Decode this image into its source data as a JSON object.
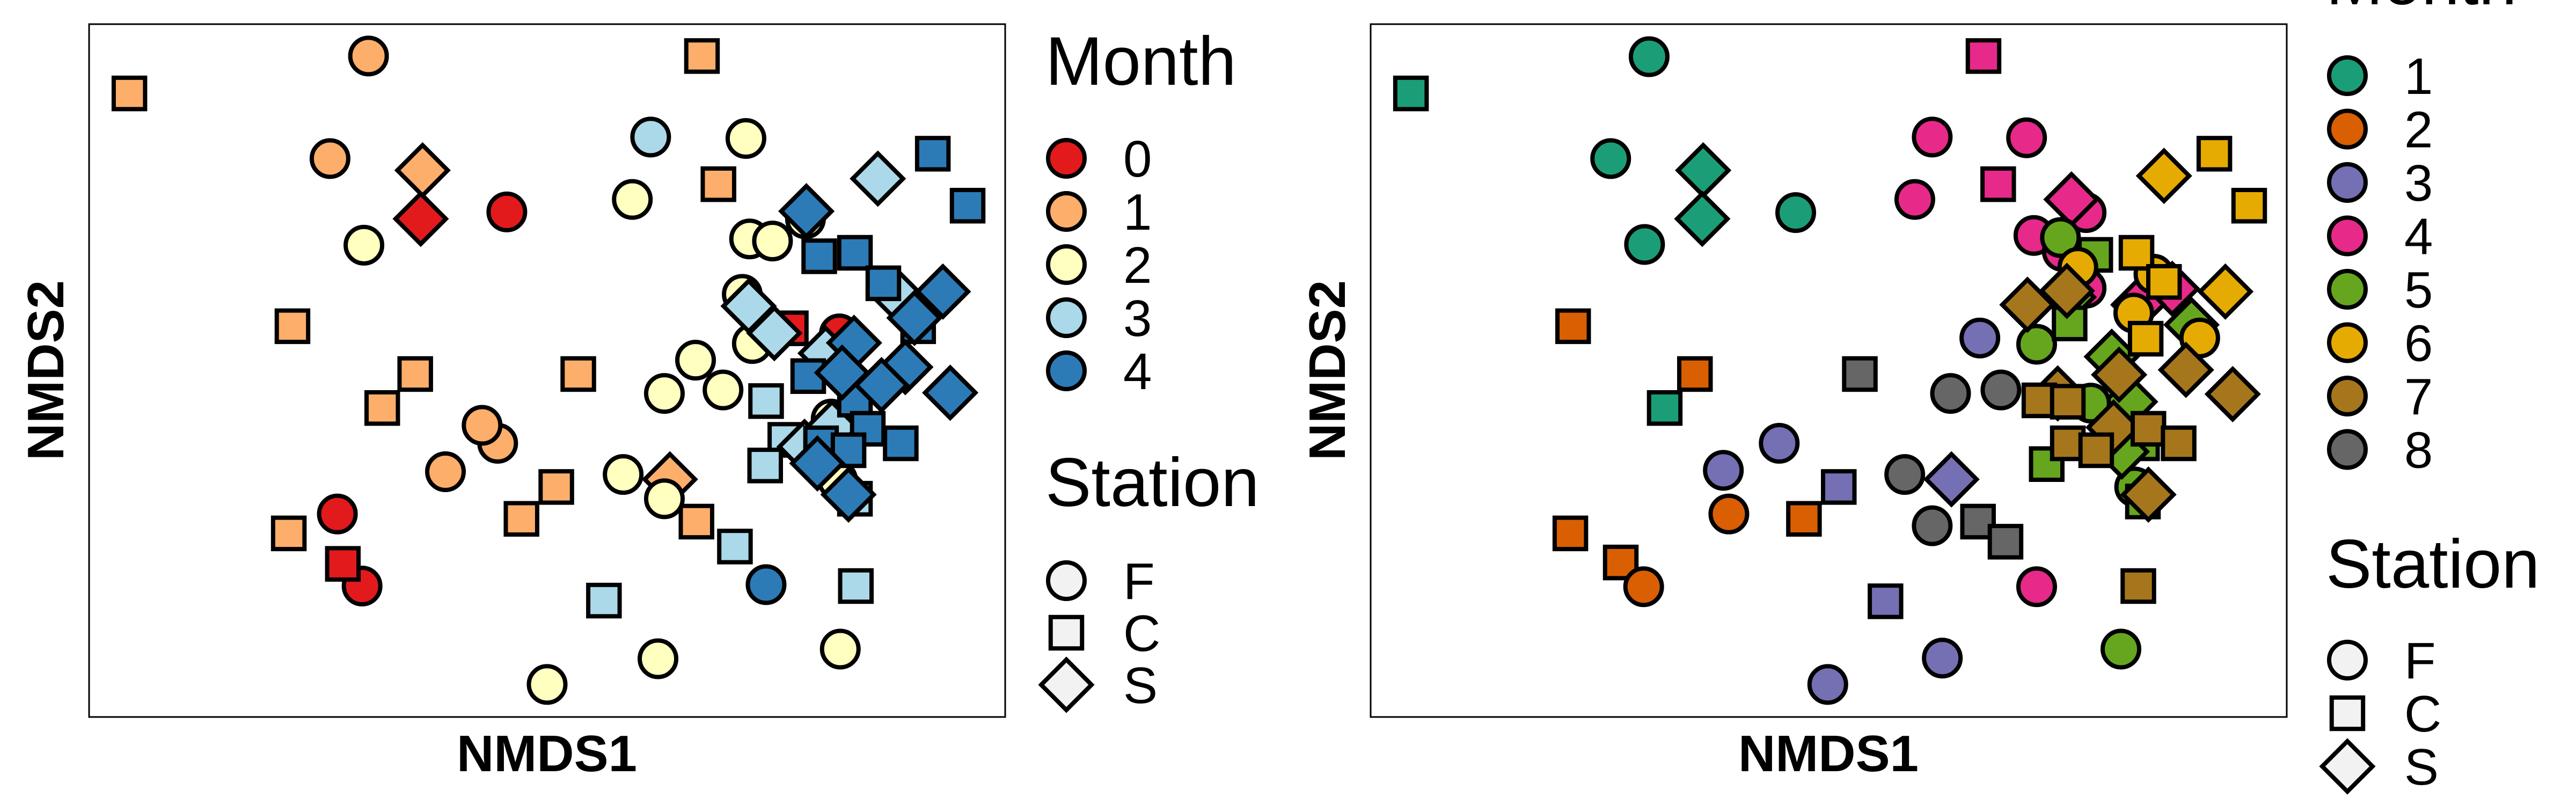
{
  "chart_data": [
    {
      "type": "scatter",
      "name": "nmds-left",
      "xlabel": "NMDS1",
      "ylabel": "NMDS2",
      "xlim": [
        0,
        100
      ],
      "ylim": [
        0,
        100
      ],
      "axis_ticks": false,
      "legend_month_title": "Month",
      "legend_station_title": "Station",
      "months": [
        {
          "label": "0",
          "color": "#E31A1C"
        },
        {
          "label": "1",
          "color": "#FDAE6B"
        },
        {
          "label": "2",
          "color": "#FFFFBF"
        },
        {
          "label": "3",
          "color": "#ABD9E9"
        },
        {
          "label": "4",
          "color": "#2C7BB6"
        }
      ],
      "stations": [
        {
          "label": "F",
          "shape": "circle"
        },
        {
          "label": "C",
          "shape": "square"
        },
        {
          "label": "S",
          "shape": "diamond"
        }
      ],
      "points": [
        {
          "x": 45.6,
          "y": 72.9,
          "m": 0,
          "s": "F"
        },
        {
          "x": 27.1,
          "y": 29.3,
          "m": 0,
          "s": "F"
        },
        {
          "x": 29.8,
          "y": 18.9,
          "m": 0,
          "s": "F"
        },
        {
          "x": 81.9,
          "y": 55.3,
          "m": 0,
          "s": "F"
        },
        {
          "x": 36.2,
          "y": 71.9,
          "m": 0,
          "s": "S"
        },
        {
          "x": 27.7,
          "y": 22.1,
          "m": 0,
          "s": "C"
        },
        {
          "x": 76.6,
          "y": 56.1,
          "m": 0,
          "s": "C"
        },
        {
          "x": 30.5,
          "y": 95.4,
          "m": 1,
          "s": "F"
        },
        {
          "x": 26.3,
          "y": 80.6,
          "m": 1,
          "s": "F"
        },
        {
          "x": 38.9,
          "y": 35.4,
          "m": 1,
          "s": "F"
        },
        {
          "x": 44.6,
          "y": 39.5,
          "m": 1,
          "s": "F"
        },
        {
          "x": 42.9,
          "y": 42.1,
          "m": 1,
          "s": "F"
        },
        {
          "x": 4.4,
          "y": 90.0,
          "m": 1,
          "s": "C"
        },
        {
          "x": 66.9,
          "y": 95.4,
          "m": 1,
          "s": "C"
        },
        {
          "x": 68.7,
          "y": 76.9,
          "m": 1,
          "s": "C"
        },
        {
          "x": 22.2,
          "y": 56.4,
          "m": 1,
          "s": "C"
        },
        {
          "x": 35.6,
          "y": 49.5,
          "m": 1,
          "s": "C"
        },
        {
          "x": 32.0,
          "y": 44.6,
          "m": 1,
          "s": "C"
        },
        {
          "x": 53.4,
          "y": 49.5,
          "m": 1,
          "s": "C"
        },
        {
          "x": 51.0,
          "y": 33.2,
          "m": 1,
          "s": "C"
        },
        {
          "x": 47.2,
          "y": 28.6,
          "m": 1,
          "s": "C"
        },
        {
          "x": 21.8,
          "y": 26.5,
          "m": 1,
          "s": "C"
        },
        {
          "x": 66.3,
          "y": 28.2,
          "m": 1,
          "s": "C"
        },
        {
          "x": 36.4,
          "y": 78.9,
          "m": 1,
          "s": "S"
        },
        {
          "x": 63.4,
          "y": 34.3,
          "m": 1,
          "s": "S"
        },
        {
          "x": 71.7,
          "y": 83.5,
          "m": 2,
          "s": "F"
        },
        {
          "x": 59.3,
          "y": 74.7,
          "m": 2,
          "s": "F"
        },
        {
          "x": 78.2,
          "y": 71.9,
          "m": 2,
          "s": "F"
        },
        {
          "x": 72.1,
          "y": 69.0,
          "m": 2,
          "s": "F"
        },
        {
          "x": 74.6,
          "y": 68.7,
          "m": 2,
          "s": "F"
        },
        {
          "x": 30.0,
          "y": 68.1,
          "m": 2,
          "s": "F"
        },
        {
          "x": 71.3,
          "y": 61.0,
          "m": 2,
          "s": "F"
        },
        {
          "x": 66.2,
          "y": 51.5,
          "m": 2,
          "s": "F"
        },
        {
          "x": 72.4,
          "y": 53.9,
          "m": 2,
          "s": "F"
        },
        {
          "x": 62.8,
          "y": 46.7,
          "m": 2,
          "s": "F"
        },
        {
          "x": 69.2,
          "y": 47.2,
          "m": 2,
          "s": "F"
        },
        {
          "x": 58.3,
          "y": 35.0,
          "m": 2,
          "s": "F"
        },
        {
          "x": 62.8,
          "y": 31.5,
          "m": 2,
          "s": "F"
        },
        {
          "x": 81.0,
          "y": 43.0,
          "m": 2,
          "s": "F"
        },
        {
          "x": 81.7,
          "y": 34.2,
          "m": 2,
          "s": "F"
        },
        {
          "x": 62.1,
          "y": 8.4,
          "m": 2,
          "s": "F"
        },
        {
          "x": 50.0,
          "y": 4.7,
          "m": 2,
          "s": "F"
        },
        {
          "x": 82.0,
          "y": 9.8,
          "m": 2,
          "s": "F"
        },
        {
          "x": 61.3,
          "y": 83.7,
          "m": 3,
          "s": "F"
        },
        {
          "x": 74.8,
          "y": 55.4,
          "m": 3,
          "s": "S"
        },
        {
          "x": 86.1,
          "y": 77.7,
          "m": 3,
          "s": "S"
        },
        {
          "x": 80.4,
          "y": 52.5,
          "m": 3,
          "s": "S"
        },
        {
          "x": 73.9,
          "y": 45.6,
          "m": 3,
          "s": "C"
        },
        {
          "x": 76.0,
          "y": 40.0,
          "m": 3,
          "s": "C"
        },
        {
          "x": 73.8,
          "y": 36.3,
          "m": 3,
          "s": "C"
        },
        {
          "x": 83.6,
          "y": 31.5,
          "m": 3,
          "s": "C"
        },
        {
          "x": 70.5,
          "y": 24.6,
          "m": 3,
          "s": "C"
        },
        {
          "x": 56.2,
          "y": 16.8,
          "m": 3,
          "s": "C"
        },
        {
          "x": 83.7,
          "y": 18.9,
          "m": 3,
          "s": "C"
        },
        {
          "x": 88.3,
          "y": 60.7,
          "m": 3,
          "s": "S"
        },
        {
          "x": 81.1,
          "y": 41.8,
          "m": 3,
          "s": "S"
        },
        {
          "x": 78.1,
          "y": 39.0,
          "m": 3,
          "s": "S"
        },
        {
          "x": 73.9,
          "y": 19.1,
          "m": 4,
          "s": "F"
        },
        {
          "x": 92.1,
          "y": 81.3,
          "m": 4,
          "s": "C"
        },
        {
          "x": 95.9,
          "y": 73.8,
          "m": 4,
          "s": "C"
        },
        {
          "x": 79.7,
          "y": 66.5,
          "m": 4,
          "s": "C"
        },
        {
          "x": 83.6,
          "y": 67.0,
          "m": 4,
          "s": "C"
        },
        {
          "x": 86.7,
          "y": 62.6,
          "m": 4,
          "s": "C"
        },
        {
          "x": 90.5,
          "y": 56.4,
          "m": 4,
          "s": "C"
        },
        {
          "x": 78.5,
          "y": 49.2,
          "m": 4,
          "s": "C"
        },
        {
          "x": 83.6,
          "y": 45.8,
          "m": 4,
          "s": "C"
        },
        {
          "x": 85.0,
          "y": 41.6,
          "m": 4,
          "s": "C"
        },
        {
          "x": 88.6,
          "y": 39.5,
          "m": 4,
          "s": "C"
        },
        {
          "x": 79.9,
          "y": 39.5,
          "m": 4,
          "s": "C"
        },
        {
          "x": 82.9,
          "y": 38.5,
          "m": 4,
          "s": "C"
        },
        {
          "x": 78.3,
          "y": 73.0,
          "m": 4,
          "s": "S"
        },
        {
          "x": 93.2,
          "y": 61.4,
          "m": 4,
          "s": "S"
        },
        {
          "x": 90.1,
          "y": 57.6,
          "m": 4,
          "s": "S"
        },
        {
          "x": 89.1,
          "y": 50.5,
          "m": 4,
          "s": "S"
        },
        {
          "x": 83.5,
          "y": 54.0,
          "m": 4,
          "s": "S"
        },
        {
          "x": 82.2,
          "y": 49.7,
          "m": 4,
          "s": "S"
        },
        {
          "x": 94.0,
          "y": 46.8,
          "m": 4,
          "s": "S"
        },
        {
          "x": 82.9,
          "y": 32.1,
          "m": 4,
          "s": "S"
        },
        {
          "x": 86.5,
          "y": 47.9,
          "m": 4,
          "s": "S"
        },
        {
          "x": 72.0,
          "y": 59.3,
          "m": 3,
          "s": "S"
        },
        {
          "x": 79.5,
          "y": 36.6,
          "m": 4,
          "s": "S"
        }
      ]
    },
    {
      "type": "scatter",
      "name": "nmds-right",
      "xlabel": "NMDS1",
      "ylabel": "NMDS2",
      "xlim": [
        0,
        100
      ],
      "ylim": [
        0,
        100
      ],
      "axis_ticks": false,
      "legend_month_title": "Month",
      "legend_station_title": "Station",
      "months": [
        {
          "label": "1",
          "color": "#1B9E77"
        },
        {
          "label": "2",
          "color": "#D95F02"
        },
        {
          "label": "3",
          "color": "#7570B3"
        },
        {
          "label": "4",
          "color": "#E7298A"
        },
        {
          "label": "5",
          "color": "#66A61E"
        },
        {
          "label": "6",
          "color": "#E6AB02"
        },
        {
          "label": "7",
          "color": "#A6761D"
        },
        {
          "label": "8",
          "color": "#666666"
        }
      ],
      "stations": [
        {
          "label": "F",
          "shape": "circle"
        },
        {
          "label": "C",
          "shape": "square"
        },
        {
          "label": "S",
          "shape": "diamond"
        }
      ],
      "points": [
        {
          "x": 30.4,
          "y": 95.3,
          "m": 1,
          "s": "F"
        },
        {
          "x": 26.2,
          "y": 80.6,
          "m": 1,
          "s": "F"
        },
        {
          "x": 29.9,
          "y": 68.2,
          "m": 1,
          "s": "F"
        },
        {
          "x": 46.4,
          "y": 72.8,
          "m": 1,
          "s": "F"
        },
        {
          "x": 4.4,
          "y": 90.0,
          "m": 1,
          "s": "C"
        },
        {
          "x": 32.1,
          "y": 44.6,
          "m": 1,
          "s": "C"
        },
        {
          "x": 36.3,
          "y": 78.9,
          "m": 1,
          "s": "S"
        },
        {
          "x": 36.2,
          "y": 71.9,
          "m": 1,
          "s": "S"
        },
        {
          "x": 22.1,
          "y": 56.4,
          "m": 2,
          "s": "C"
        },
        {
          "x": 35.4,
          "y": 49.5,
          "m": 2,
          "s": "C"
        },
        {
          "x": 21.8,
          "y": 26.5,
          "m": 2,
          "s": "C"
        },
        {
          "x": 27.3,
          "y": 22.3,
          "m": 2,
          "s": "C"
        },
        {
          "x": 47.3,
          "y": 28.6,
          "m": 2,
          "s": "C"
        },
        {
          "x": 39.1,
          "y": 29.3,
          "m": 2,
          "s": "F"
        },
        {
          "x": 29.8,
          "y": 18.8,
          "m": 2,
          "s": "F"
        },
        {
          "x": 66.5,
          "y": 54.7,
          "m": 3,
          "s": "F"
        },
        {
          "x": 44.6,
          "y": 39.5,
          "m": 3,
          "s": "F"
        },
        {
          "x": 38.5,
          "y": 35.6,
          "m": 3,
          "s": "F"
        },
        {
          "x": 62.4,
          "y": 8.5,
          "m": 3,
          "s": "F"
        },
        {
          "x": 49.9,
          "y": 4.7,
          "m": 3,
          "s": "F"
        },
        {
          "x": 51.1,
          "y": 33.2,
          "m": 3,
          "s": "C"
        },
        {
          "x": 56.2,
          "y": 16.7,
          "m": 3,
          "s": "C"
        },
        {
          "x": 63.4,
          "y": 34.3,
          "m": 3,
          "s": "S"
        },
        {
          "x": 61.3,
          "y": 83.7,
          "m": 4,
          "s": "F"
        },
        {
          "x": 71.6,
          "y": 83.6,
          "m": 4,
          "s": "F"
        },
        {
          "x": 59.4,
          "y": 74.7,
          "m": 4,
          "s": "F"
        },
        {
          "x": 78.1,
          "y": 72.8,
          "m": 4,
          "s": "F"
        },
        {
          "x": 72.4,
          "y": 69.5,
          "m": 4,
          "s": "F"
        },
        {
          "x": 75.5,
          "y": 67.2,
          "m": 4,
          "s": "F"
        },
        {
          "x": 78.1,
          "y": 61.9,
          "m": 4,
          "s": "F"
        },
        {
          "x": 72.7,
          "y": 18.8,
          "m": 4,
          "s": "F"
        },
        {
          "x": 66.9,
          "y": 95.4,
          "m": 4,
          "s": "C"
        },
        {
          "x": 68.5,
          "y": 76.9,
          "m": 4,
          "s": "C"
        },
        {
          "x": 76.5,
          "y": 74.7,
          "m": 4,
          "s": "S"
        },
        {
          "x": 87.5,
          "y": 61.8,
          "m": 4,
          "s": "S"
        },
        {
          "x": 83.8,
          "y": 59.5,
          "m": 4,
          "s": "S"
        },
        {
          "x": 75.3,
          "y": 69.2,
          "m": 5,
          "s": "F"
        },
        {
          "x": 72.7,
          "y": 53.8,
          "m": 5,
          "s": "F"
        },
        {
          "x": 81.9,
          "y": 9.8,
          "m": 5,
          "s": "F"
        },
        {
          "x": 83.4,
          "y": 33.2,
          "m": 5,
          "s": "F"
        },
        {
          "x": 76.2,
          "y": 60.6,
          "m": 5,
          "s": "S"
        },
        {
          "x": 79.1,
          "y": 66.7,
          "m": 5,
          "s": "C"
        },
        {
          "x": 76.3,
          "y": 56.8,
          "m": 5,
          "s": "C"
        },
        {
          "x": 80.8,
          "y": 42.3,
          "m": 5,
          "s": "C"
        },
        {
          "x": 84.2,
          "y": 39.5,
          "m": 5,
          "s": "C"
        },
        {
          "x": 73.8,
          "y": 36.5,
          "m": 5,
          "s": "C"
        },
        {
          "x": 84.3,
          "y": 31.1,
          "m": 5,
          "s": "C"
        },
        {
          "x": 80.9,
          "y": 52.0,
          "m": 5,
          "s": "S"
        },
        {
          "x": 82.9,
          "y": 45.5,
          "m": 5,
          "s": "S"
        },
        {
          "x": 82.0,
          "y": 38.3,
          "m": 5,
          "s": "S"
        },
        {
          "x": 89.6,
          "y": 56.6,
          "m": 5,
          "s": "S"
        },
        {
          "x": 78.6,
          "y": 45.3,
          "m": 5,
          "s": "F"
        },
        {
          "x": 77.2,
          "y": 64.9,
          "m": 6,
          "s": "F"
        },
        {
          "x": 90.5,
          "y": 54.7,
          "m": 6,
          "s": "F"
        },
        {
          "x": 85.5,
          "y": 63.9,
          "m": 6,
          "s": "F"
        },
        {
          "x": 83.3,
          "y": 58.3,
          "m": 6,
          "s": "F"
        },
        {
          "x": 92.1,
          "y": 81.3,
          "m": 6,
          "s": "C"
        },
        {
          "x": 95.9,
          "y": 73.8,
          "m": 6,
          "s": "C"
        },
        {
          "x": 83.6,
          "y": 67.0,
          "m": 6,
          "s": "C"
        },
        {
          "x": 86.6,
          "y": 62.8,
          "m": 6,
          "s": "C"
        },
        {
          "x": 84.6,
          "y": 54.6,
          "m": 6,
          "s": "C"
        },
        {
          "x": 86.6,
          "y": 78.1,
          "m": 6,
          "s": "S"
        },
        {
          "x": 93.3,
          "y": 61.4,
          "m": 6,
          "s": "S"
        },
        {
          "x": 71.7,
          "y": 59.5,
          "m": 7,
          "s": "S"
        },
        {
          "x": 76.0,
          "y": 61.5,
          "m": 7,
          "s": "S"
        },
        {
          "x": 75.0,
          "y": 46.7,
          "m": 7,
          "s": "S"
        },
        {
          "x": 81.7,
          "y": 49.4,
          "m": 7,
          "s": "S"
        },
        {
          "x": 89.0,
          "y": 50.1,
          "m": 7,
          "s": "S"
        },
        {
          "x": 94.1,
          "y": 46.6,
          "m": 7,
          "s": "S"
        },
        {
          "x": 81.1,
          "y": 41.8,
          "m": 7,
          "s": "S"
        },
        {
          "x": 73.0,
          "y": 45.7,
          "m": 7,
          "s": "C"
        },
        {
          "x": 76.1,
          "y": 45.5,
          "m": 7,
          "s": "C"
        },
        {
          "x": 76.1,
          "y": 39.5,
          "m": 7,
          "s": "C"
        },
        {
          "x": 79.2,
          "y": 38.5,
          "m": 7,
          "s": "C"
        },
        {
          "x": 84.9,
          "y": 41.6,
          "m": 7,
          "s": "C"
        },
        {
          "x": 88.2,
          "y": 39.5,
          "m": 7,
          "s": "C"
        },
        {
          "x": 83.8,
          "y": 18.9,
          "m": 7,
          "s": "C"
        },
        {
          "x": 84.9,
          "y": 32.1,
          "m": 7,
          "s": "S"
        },
        {
          "x": 63.3,
          "y": 46.7,
          "m": 8,
          "s": "F"
        },
        {
          "x": 68.8,
          "y": 47.2,
          "m": 8,
          "s": "F"
        },
        {
          "x": 58.3,
          "y": 35.0,
          "m": 8,
          "s": "F"
        },
        {
          "x": 61.3,
          "y": 27.6,
          "m": 8,
          "s": "F"
        },
        {
          "x": 53.4,
          "y": 49.5,
          "m": 8,
          "s": "C"
        },
        {
          "x": 66.3,
          "y": 28.2,
          "m": 8,
          "s": "C"
        },
        {
          "x": 69.3,
          "y": 25.3,
          "m": 8,
          "s": "C"
        }
      ]
    }
  ]
}
